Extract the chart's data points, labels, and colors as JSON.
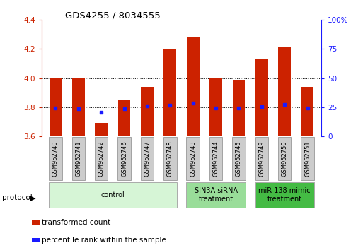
{
  "title": "GDS4255 / 8034555",
  "samples": [
    "GSM952740",
    "GSM952741",
    "GSM952742",
    "GSM952746",
    "GSM952747",
    "GSM952748",
    "GSM952743",
    "GSM952744",
    "GSM952745",
    "GSM952749",
    "GSM952750",
    "GSM952751"
  ],
  "transformed_counts": [
    4.0,
    4.0,
    3.69,
    3.85,
    3.94,
    4.2,
    4.28,
    4.0,
    3.99,
    4.13,
    4.21,
    3.94
  ],
  "percentile_ranks": [
    3.795,
    3.787,
    3.763,
    3.791,
    3.807,
    3.813,
    3.826,
    3.795,
    3.795,
    3.806,
    3.816,
    3.796
  ],
  "ylim": [
    3.6,
    4.4
  ],
  "yticks_left": [
    3.6,
    3.8,
    4.0,
    4.2,
    4.4
  ],
  "right_yticks": [
    0,
    25,
    50,
    75,
    100
  ],
  "bar_color": "#cc2200",
  "dot_color": "#1a1aff",
  "background_color": "#ffffff",
  "groups": [
    {
      "label": "control",
      "start": 0,
      "end": 6,
      "color": "#d6f5d6",
      "border": "#aaaaaa"
    },
    {
      "label": "SIN3A siRNA\ntreatment",
      "start": 6,
      "end": 9,
      "color": "#99dd99",
      "border": "#aaaaaa"
    },
    {
      "label": "miR-138 mimic\ntreatment",
      "start": 9,
      "end": 12,
      "color": "#44bb44",
      "border": "#aaaaaa"
    }
  ],
  "legend_items": [
    {
      "label": "transformed count",
      "color": "#cc2200"
    },
    {
      "label": "percentile rank within the sample",
      "color": "#1a1aff"
    }
  ],
  "bar_width": 0.55,
  "bar_bottom": 3.6
}
